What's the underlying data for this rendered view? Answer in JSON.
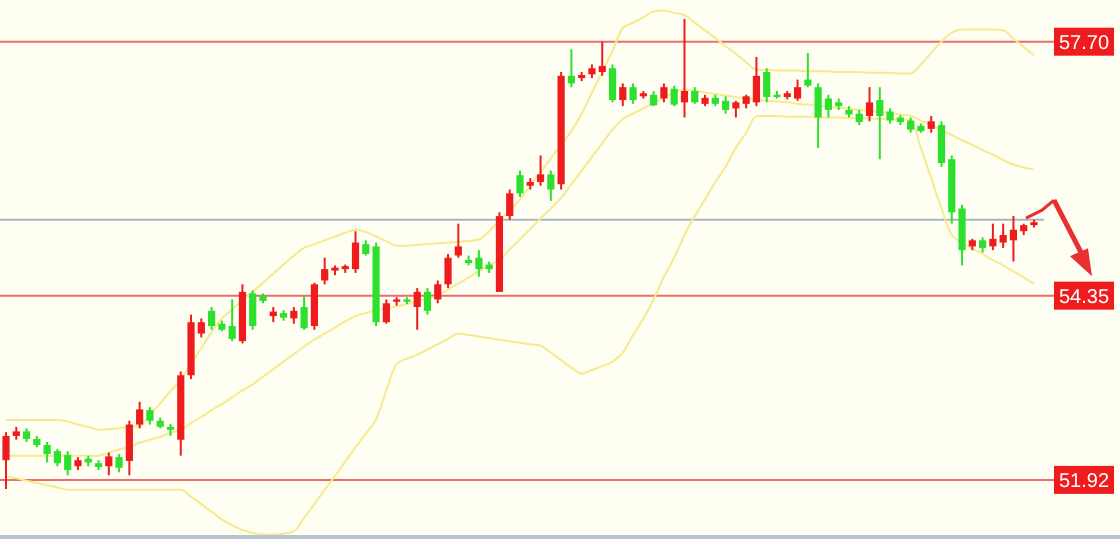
{
  "chart_data": {
    "type": "candlestick",
    "categories": [
      null,
      null,
      null,
      null,
      null,
      null,
      null,
      null,
      null,
      null,
      null,
      null,
      null,
      null,
      null,
      null,
      null,
      null,
      null,
      null,
      null,
      null,
      null,
      null,
      null,
      null,
      null,
      null,
      null,
      null,
      null,
      null,
      null,
      null,
      null,
      null,
      null,
      null,
      null,
      null,
      null,
      null,
      null,
      null,
      null,
      null,
      null,
      null,
      null,
      null,
      null,
      null,
      null,
      null,
      null,
      null,
      null,
      null,
      null,
      null,
      null,
      null,
      null,
      null,
      null,
      null,
      null,
      null,
      null,
      null,
      null,
      null,
      null,
      null,
      null,
      null,
      null,
      null,
      null,
      null,
      null,
      null,
      null,
      null,
      null,
      null,
      null,
      null,
      null,
      null,
      null,
      null,
      null,
      null,
      null,
      null,
      null,
      null,
      null,
      null,
      null
    ],
    "ohlc": [
      [
        52.18,
        52.55,
        51.8,
        52.5
      ],
      [
        52.5,
        52.62,
        52.45,
        52.56
      ],
      [
        52.56,
        52.6,
        52.42,
        52.46
      ],
      [
        52.46,
        52.5,
        52.35,
        52.38
      ],
      [
        52.38,
        52.42,
        52.15,
        52.26
      ],
      [
        52.3,
        52.33,
        52.1,
        52.14
      ],
      [
        52.25,
        52.3,
        51.98,
        52.05
      ],
      [
        52.1,
        52.22,
        52.05,
        52.18
      ],
      [
        52.2,
        52.24,
        52.1,
        52.15
      ],
      [
        52.14,
        52.18,
        52.05,
        52.09
      ],
      [
        52.1,
        52.28,
        51.98,
        52.23
      ],
      [
        52.22,
        52.26,
        52.02,
        52.08
      ],
      [
        52.17,
        52.7,
        51.98,
        52.65
      ],
      [
        52.65,
        52.95,
        52.6,
        52.85
      ],
      [
        52.84,
        52.88,
        52.65,
        52.7
      ],
      [
        52.7,
        52.74,
        52.6,
        52.62
      ],
      [
        52.62,
        52.66,
        52.5,
        52.58
      ],
      [
        52.45,
        53.35,
        52.24,
        53.3
      ],
      [
        53.3,
        54.1,
        53.25,
        54.0
      ],
      [
        53.85,
        54.05,
        53.8,
        54.0
      ],
      [
        54.15,
        54.2,
        53.9,
        53.95
      ],
      [
        53.98,
        54.02,
        53.88,
        53.9
      ],
      [
        53.95,
        54.3,
        53.75,
        53.78
      ],
      [
        53.75,
        54.5,
        53.72,
        54.4
      ],
      [
        54.38,
        54.42,
        53.9,
        53.95
      ],
      [
        54.35,
        54.38,
        54.25,
        54.28
      ],
      [
        54.08,
        54.2,
        54.0,
        54.14
      ],
      [
        54.12,
        54.16,
        54.02,
        54.06
      ],
      [
        54.05,
        54.2,
        53.98,
        54.15
      ],
      [
        54.2,
        54.35,
        53.9,
        53.92
      ],
      [
        53.95,
        54.52,
        53.9,
        54.5
      ],
      [
        54.55,
        54.85,
        54.5,
        54.7
      ],
      [
        54.68,
        54.75,
        54.62,
        54.72
      ],
      [
        54.7,
        54.76,
        54.65,
        54.74
      ],
      [
        54.7,
        55.2,
        54.65,
        55.05
      ],
      [
        55.03,
        55.08,
        54.88,
        54.9
      ],
      [
        55.0,
        55.05,
        53.95,
        54.0
      ],
      [
        54.0,
        54.3,
        53.98,
        54.25
      ],
      [
        54.27,
        54.33,
        54.22,
        54.3
      ],
      [
        54.3,
        54.33,
        54.24,
        54.27
      ],
      [
        54.2,
        54.45,
        53.9,
        54.4
      ],
      [
        54.4,
        54.45,
        54.1,
        54.15
      ],
      [
        54.3,
        54.55,
        54.25,
        54.5
      ],
      [
        54.5,
        54.9,
        54.45,
        54.85
      ],
      [
        54.88,
        55.3,
        54.85,
        55.0
      ],
      [
        54.82,
        54.88,
        54.75,
        54.78
      ],
      [
        54.85,
        54.95,
        54.6,
        54.7
      ],
      [
        54.76,
        54.8,
        54.65,
        54.7
      ],
      [
        54.4,
        55.45,
        54.4,
        55.4
      ],
      [
        55.4,
        55.75,
        55.35,
        55.7
      ],
      [
        55.94,
        56.0,
        55.65,
        55.7
      ],
      [
        55.8,
        55.9,
        55.75,
        55.85
      ],
      [
        55.85,
        56.2,
        55.8,
        55.95
      ],
      [
        55.95,
        56.0,
        55.6,
        55.75
      ],
      [
        55.82,
        57.3,
        55.75,
        57.25
      ],
      [
        57.25,
        57.6,
        57.1,
        57.15
      ],
      [
        57.22,
        57.3,
        57.18,
        57.26
      ],
      [
        57.27,
        57.4,
        57.22,
        57.35
      ],
      [
        57.3,
        57.7,
        57.25,
        57.38
      ],
      [
        57.35,
        57.4,
        56.9,
        56.93
      ],
      [
        56.93,
        57.15,
        56.85,
        57.1
      ],
      [
        57.1,
        57.15,
        56.88,
        56.93
      ],
      [
        56.98,
        57.05,
        56.95,
        57.02
      ],
      [
        57.0,
        57.05,
        56.85,
        56.86
      ],
      [
        56.95,
        57.15,
        56.9,
        57.1
      ],
      [
        57.08,
        57.12,
        56.85,
        56.87
      ],
      [
        56.9,
        58.0,
        56.7,
        57.05
      ],
      [
        57.05,
        57.1,
        56.88,
        56.9
      ],
      [
        56.88,
        57.0,
        56.85,
        56.96
      ],
      [
        56.96,
        57.0,
        56.85,
        56.88
      ],
      [
        56.92,
        56.98,
        56.75,
        56.8
      ],
      [
        56.82,
        56.92,
        56.7,
        56.9
      ],
      [
        56.88,
        57.0,
        56.82,
        56.98
      ],
      [
        56.9,
        57.5,
        56.85,
        57.25
      ],
      [
        57.3,
        57.35,
        56.9,
        56.97
      ],
      [
        57.0,
        57.05,
        56.95,
        56.97
      ],
      [
        56.97,
        57.05,
        56.94,
        57.02
      ],
      [
        56.95,
        57.2,
        56.92,
        57.1
      ],
      [
        57.2,
        57.55,
        57.1,
        57.12
      ],
      [
        57.1,
        57.15,
        56.3,
        56.7
      ],
      [
        56.95,
        57.0,
        56.7,
        56.8
      ],
      [
        56.9,
        56.95,
        56.8,
        56.85
      ],
      [
        56.8,
        56.85,
        56.7,
        56.74
      ],
      [
        56.75,
        56.8,
        56.6,
        56.64
      ],
      [
        56.72,
        57.1,
        56.65,
        56.9
      ],
      [
        56.93,
        57.1,
        56.15,
        56.72
      ],
      [
        56.78,
        56.82,
        56.62,
        56.66
      ],
      [
        56.7,
        56.73,
        56.6,
        56.64
      ],
      [
        56.66,
        56.7,
        56.5,
        56.54
      ],
      [
        56.59,
        56.62,
        56.5,
        56.52
      ],
      [
        56.55,
        56.72,
        56.5,
        56.65
      ],
      [
        56.6,
        56.65,
        56.05,
        56.1
      ],
      [
        56.15,
        56.2,
        55.3,
        55.45
      ],
      [
        55.5,
        55.55,
        54.75,
        54.95
      ],
      [
        55.0,
        55.1,
        54.95,
        55.08
      ],
      [
        55.08,
        55.12,
        54.92,
        54.98
      ],
      [
        55.0,
        55.3,
        54.95,
        55.1
      ],
      [
        55.05,
        55.3,
        54.98,
        55.15
      ],
      [
        55.08,
        55.4,
        54.8,
        55.22
      ],
      [
        55.2,
        55.3,
        55.15,
        55.28
      ],
      [
        55.28,
        55.35,
        55.25,
        55.32
      ]
    ],
    "series": [
      {
        "type": "line",
        "color": "#f7e98e",
        "values": [
          52.71,
          52.71,
          52.71,
          52.71,
          52.71,
          52.71,
          52.69,
          52.65,
          52.62,
          52.58,
          52.59,
          52.6,
          52.62,
          52.63,
          52.78,
          52.93,
          53.09,
          53.24,
          53.45,
          53.66,
          53.87,
          54.05,
          54.17,
          54.29,
          54.4,
          54.52,
          54.64,
          54.76,
          54.88,
          54.98,
          55.03,
          55.08,
          55.13,
          55.18,
          55.22,
          55.19,
          55.13,
          55.07,
          55.01,
          55.01,
          55.02,
          55.03,
          55.04,
          55.05,
          55.06,
          55.07,
          55.09,
          55.2,
          55.34,
          55.48,
          55.62,
          55.8,
          55.98,
          56.16,
          56.34,
          56.52,
          56.75,
          57.03,
          57.3,
          57.58,
          57.88,
          57.95,
          58.02,
          58.1,
          58.11,
          58.08,
          58.05,
          57.95,
          57.85,
          57.75,
          57.64,
          57.54,
          57.43,
          57.33,
          57.33,
          57.32,
          57.32,
          57.32,
          57.31,
          57.31,
          57.31,
          57.3,
          57.3,
          57.3,
          57.29,
          57.29,
          57.29,
          57.28,
          57.28,
          57.4,
          57.55,
          57.7,
          57.82,
          57.86,
          57.86,
          57.86,
          57.86,
          57.85,
          57.74,
          57.63,
          57.52
        ]
      },
      {
        "type": "line",
        "color": "#f7e98e",
        "values": [
          52.24,
          52.24,
          52.24,
          52.24,
          52.24,
          52.24,
          52.24,
          52.24,
          52.24,
          52.24,
          52.28,
          52.32,
          52.36,
          52.41,
          52.45,
          52.49,
          52.54,
          52.58,
          52.67,
          52.75,
          52.84,
          52.92,
          53.01,
          53.1,
          53.18,
          53.28,
          53.38,
          53.48,
          53.58,
          53.68,
          53.77,
          53.85,
          53.93,
          54.01,
          54.08,
          54.12,
          54.16,
          54.18,
          54.21,
          54.24,
          54.28,
          54.31,
          54.35,
          54.43,
          54.51,
          54.59,
          54.67,
          54.75,
          54.82,
          54.96,
          55.09,
          55.23,
          55.37,
          55.5,
          55.64,
          55.82,
          56.0,
          56.18,
          56.36,
          56.54,
          56.68,
          56.75,
          56.82,
          56.89,
          56.96,
          57.03,
          57.07,
          57.05,
          57.03,
          57.01,
          56.99,
          56.97,
          56.95,
          56.93,
          56.92,
          56.91,
          56.9,
          56.88,
          56.87,
          56.86,
          56.84,
          56.83,
          56.82,
          56.8,
          56.79,
          56.77,
          56.76,
          56.74,
          56.72,
          56.66,
          56.6,
          56.53,
          56.47,
          56.4,
          56.34,
          56.27,
          56.21,
          56.14,
          56.08,
          56.04,
          56.01
        ]
      },
      {
        "type": "line",
        "color": "#f7e98e",
        "values": [
          51.97,
          51.94,
          51.91,
          51.88,
          51.85,
          51.82,
          51.79,
          51.79,
          51.79,
          51.79,
          51.79,
          51.79,
          51.79,
          51.79,
          51.79,
          51.79,
          51.79,
          51.79,
          51.7,
          51.6,
          51.5,
          51.4,
          51.32,
          51.26,
          51.22,
          51.2,
          51.2,
          51.21,
          51.24,
          51.42,
          51.6,
          51.79,
          51.97,
          52.16,
          52.35,
          52.53,
          52.72,
          53.1,
          53.45,
          53.52,
          53.57,
          53.64,
          53.71,
          53.78,
          53.85,
          53.83,
          53.81,
          53.79,
          53.77,
          53.75,
          53.73,
          53.71,
          53.69,
          53.6,
          53.5,
          53.4,
          53.32,
          53.37,
          53.42,
          53.48,
          53.6,
          53.83,
          54.05,
          54.3,
          54.6,
          54.85,
          55.15,
          55.4,
          55.62,
          55.85,
          56.05,
          56.3,
          56.5,
          56.72,
          56.72,
          56.72,
          56.71,
          56.71,
          56.71,
          56.7,
          56.7,
          56.7,
          56.69,
          56.69,
          56.69,
          56.68,
          56.68,
          56.67,
          56.67,
          56.3,
          55.9,
          55.5,
          55.15,
          55.05,
          54.97,
          54.9,
          54.82,
          54.75,
          54.67,
          54.59,
          54.51
        ]
      }
    ],
    "ylim": [
      51.18,
      58.25
    ],
    "ref_lines": [
      {
        "axis": "y",
        "value": 57.7,
        "label": "57.70",
        "color": "#ec6b6b"
      },
      {
        "axis": "y",
        "value": 55.35,
        "color": "#a9b6c9"
      },
      {
        "axis": "y",
        "value": 54.35,
        "label": "54.35",
        "color": "#ec6b6b"
      },
      {
        "axis": "y",
        "value": 51.92,
        "label": "51.92",
        "color": "#ec6b6b"
      }
    ],
    "tick_labels": false,
    "grid": false
  }
}
